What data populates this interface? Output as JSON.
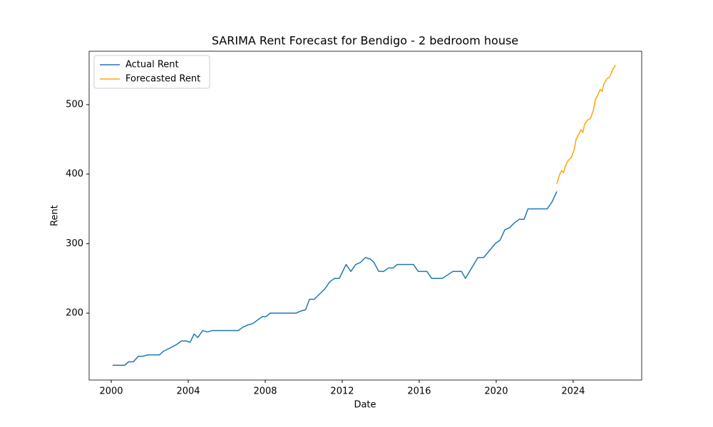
{
  "chart_data": {
    "type": "line",
    "title": "SARIMA Rent Forecast for Bendigo - 2 bedroom house",
    "x_label": "Date",
    "y_label": "Rent",
    "xlim": [
      1998.85,
      2027.56
    ],
    "ylim": [
      103.8,
      576.8
    ],
    "xticks": [
      2000,
      2004,
      2008,
      2012,
      2016,
      2020,
      2024
    ],
    "yticks": [
      200,
      300,
      400,
      500
    ],
    "grid": false,
    "legend": "upper left",
    "series": [
      {
        "name": "Actual Rent",
        "color": "#1f77b4",
        "x": [
          2000.07,
          2000.7,
          2000.9,
          2001.15,
          2001.4,
          2001.65,
          2001.9,
          2002.5,
          2002.7,
          2003.2,
          2003.4,
          2003.65,
          2003.9,
          2004.1,
          2004.3,
          2004.5,
          2004.75,
          2005.0,
          2005.25,
          2006.6,
          2006.85,
          2007.1,
          2007.35,
          2007.85,
          2008.05,
          2008.25,
          2009.6,
          2009.85,
          2010.1,
          2010.3,
          2010.55,
          2011.1,
          2011.35,
          2011.6,
          2011.85,
          2012.2,
          2012.45,
          2012.7,
          2012.95,
          2013.2,
          2013.45,
          2013.65,
          2013.9,
          2014.15,
          2014.4,
          2014.65,
          2014.85,
          2015.7,
          2015.95,
          2016.4,
          2016.65,
          2017.2,
          2017.75,
          2018.2,
          2018.4,
          2019.05,
          2019.35,
          2019.95,
          2020.2,
          2020.45,
          2020.7,
          2020.95,
          2021.2,
          2021.45,
          2021.65,
          2022.65,
          2022.9,
          2023.15
        ],
        "values": [
          125,
          125,
          130,
          130,
          138,
          138,
          140,
          140,
          145,
          152,
          155,
          160,
          160,
          158,
          170,
          165,
          175,
          173,
          175,
          175,
          180,
          183,
          185,
          195,
          195,
          200,
          200,
          203,
          205,
          220,
          220,
          235,
          245,
          250,
          250,
          270,
          260,
          270,
          273,
          280,
          278,
          273,
          260,
          260,
          265,
          265,
          270,
          270,
          260,
          260,
          250,
          250,
          260,
          260,
          250,
          280,
          280,
          300,
          305,
          320,
          323,
          330,
          335,
          335,
          350,
          350,
          360,
          375
        ]
      },
      {
        "name": "Forecasted Rent",
        "color": "#ffa500",
        "x": [
          2023.15,
          2023.3,
          2023.4,
          2023.5,
          2023.6,
          2023.75,
          2023.9,
          2024.05,
          2024.15,
          2024.3,
          2024.4,
          2024.5,
          2024.6,
          2024.75,
          2024.9,
          2025.05,
          2025.15,
          2025.3,
          2025.4,
          2025.5,
          2025.6,
          2025.75,
          2025.9,
          2026.05,
          2026.2
        ],
        "values": [
          386,
          400,
          405,
          402,
          412,
          420,
          424,
          435,
          450,
          458,
          464,
          460,
          472,
          478,
          480,
          492,
          507,
          515,
          522,
          519,
          530,
          537,
          540,
          550,
          557
        ]
      }
    ]
  }
}
